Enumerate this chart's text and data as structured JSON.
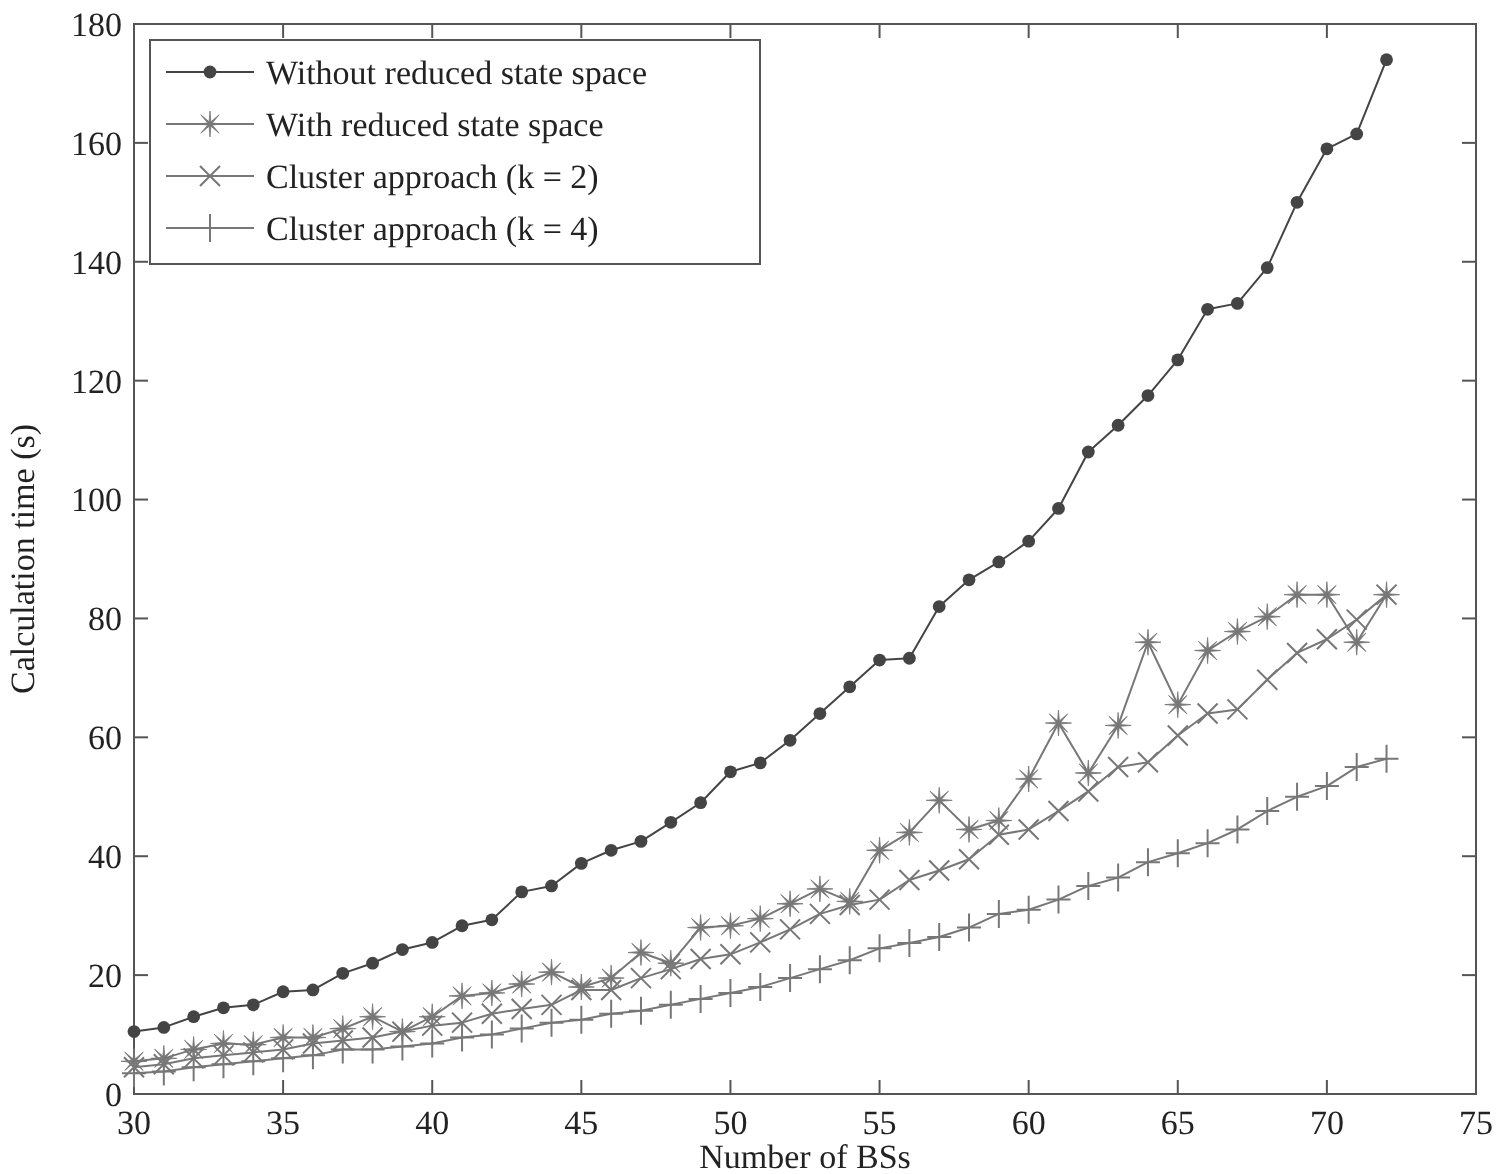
{
  "chart_data": {
    "type": "line",
    "xlabel": "Number of BSs",
    "ylabel": "Calculation time (s)",
    "x": [
      30,
      31,
      32,
      33,
      34,
      35,
      36,
      37,
      38,
      39,
      40,
      41,
      42,
      43,
      44,
      45,
      46,
      47,
      48,
      49,
      50,
      51,
      52,
      53,
      54,
      55,
      56,
      57,
      58,
      59,
      60,
      61,
      62,
      63,
      64,
      65,
      66,
      67,
      68,
      69,
      70,
      71,
      72
    ],
    "series": [
      {
        "name": "Without reduced state space",
        "color": "#444444",
        "marker": "circle",
        "values": [
          10.5,
          11.2,
          13,
          14.5,
          15,
          17.2,
          17.5,
          20.3,
          22,
          24.3,
          25.5,
          28.3,
          29.3,
          34,
          35,
          38.8,
          41,
          42.5,
          45.7,
          49,
          54.2,
          55.7,
          59.5,
          64,
          68.5,
          73,
          73.3,
          82,
          86.5,
          89.5,
          93,
          98.5,
          108,
          112.5,
          117.5,
          123.5,
          132,
          133,
          139,
          150,
          159,
          161.5,
          174
        ]
      },
      {
        "name": "With reduced state space",
        "color": "#777777",
        "marker": "star",
        "values": [
          5.5,
          6,
          7.5,
          8.5,
          8.3,
          9.5,
          9.5,
          11,
          13,
          10.5,
          13,
          16.5,
          17,
          18.5,
          20.5,
          18,
          19.5,
          23.8,
          22,
          28,
          28.3,
          29.5,
          32,
          34.5,
          32.4,
          41,
          44,
          49.4,
          44.5,
          46,
          53,
          62.4,
          54,
          62,
          76,
          65.5,
          74.6,
          77.8,
          80.3,
          84,
          84,
          76,
          84
        ]
      },
      {
        "name": "Cluster approach (k = 2)",
        "color": "#777777",
        "marker": "cross",
        "values": [
          4.5,
          5,
          6,
          6.5,
          7,
          7.5,
          8.5,
          9,
          9.5,
          10.5,
          11.5,
          12,
          13.5,
          14.3,
          15,
          17.5,
          17.5,
          19.5,
          21,
          22.7,
          23.5,
          25.5,
          27.7,
          30.3,
          31.8,
          32.7,
          36,
          37.6,
          39.5,
          43.6,
          44.5,
          47.6,
          50.9,
          55,
          55.8,
          60.3,
          64,
          64.7,
          69.7,
          74.2,
          76.5,
          79.8,
          84
        ]
      },
      {
        "name": "Cluster approach (k = 4)",
        "color": "#777777",
        "marker": "plus",
        "values": [
          3.5,
          3.8,
          4.5,
          5,
          5.5,
          6,
          6.5,
          7.5,
          7.5,
          8,
          8.5,
          9.5,
          10,
          11,
          12,
          12.5,
          13.5,
          14,
          15,
          16,
          17,
          18,
          19.5,
          21,
          22.5,
          24.5,
          25.4,
          26.4,
          28,
          30.3,
          31,
          32.7,
          35,
          36.4,
          39,
          40.5,
          42.2,
          44.5,
          47.6,
          50,
          51.8,
          55,
          56.4
        ]
      }
    ],
    "xlim": [
      30,
      75
    ],
    "xticks": [
      30,
      35,
      40,
      45,
      50,
      55,
      60,
      65,
      70,
      75
    ],
    "ylim": [
      0,
      180
    ],
    "yticks": [
      0,
      20,
      40,
      60,
      80,
      100,
      120,
      140,
      160,
      180
    ],
    "grid": false,
    "legend": "top left",
    "line_style": "solid"
  }
}
